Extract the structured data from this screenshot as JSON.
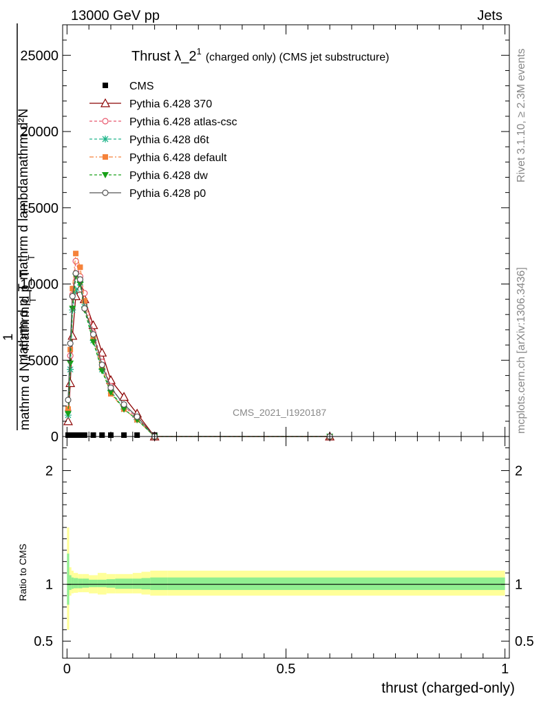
{
  "header": {
    "left": "13000 GeV pp",
    "right": "Jets"
  },
  "side": {
    "rivet": "Rivet 3.1.10, ≥ 2.3M events",
    "mcplots": "mcplots.cern.ch [arXiv:1306.3436]"
  },
  "chart_data": [
    {
      "type": "line",
      "title_main": "Thrust λ_2",
      "title_sup": "1",
      "title_rest": "(charged only) (CMS jet substructure)",
      "ylabel_num": "mathrm d²N",
      "ylabel_num2": "mathrm d p_T mathrm d lambda",
      "ylabel_sub": "T",
      "ylabel_one": "1",
      "ylabel_den": "mathrm d N / mathrm d p_T",
      "ylabel_den_sub": "T",
      "ylim": [
        0,
        27000
      ],
      "yticks": [
        0,
        5000,
        10000,
        15000,
        20000,
        25000
      ],
      "ytick_labels": [
        "0",
        "5000",
        "10000",
        "15000",
        "20000",
        "25000"
      ],
      "watermark": "CMS_2021_I1920187",
      "legend_position": "top-left",
      "x": [
        0.0025,
        0.0075,
        0.0125,
        0.02,
        0.03,
        0.04,
        0.06,
        0.08,
        0.1,
        0.13,
        0.16,
        0.2,
        0.6
      ],
      "series": [
        {
          "name": "CMS",
          "color": "#000000",
          "marker": "square",
          "line": "none",
          "values": [
            0,
            0,
            0,
            0,
            0,
            0,
            0,
            0,
            0,
            0,
            0,
            0,
            0
          ]
        },
        {
          "name": "Pythia 6.428 370",
          "color": "#8b0000",
          "marker": "triangle-open",
          "line": "solid",
          "values": [
            1000,
            3500,
            6600,
            9200,
            9700,
            9000,
            7300,
            5500,
            3700,
            2600,
            1500,
            0,
            0
          ]
        },
        {
          "name": "Pythia 6.428 atlas-csc",
          "color": "#e8556b",
          "marker": "circle-open",
          "line": "dashed",
          "values": [
            1700,
            5300,
            9300,
            11500,
            10500,
            9400,
            6800,
            4900,
            3300,
            2000,
            1200,
            0,
            0
          ]
        },
        {
          "name": "Pythia 6.428 d6t",
          "color": "#1fb58a",
          "marker": "star",
          "line": "dashed",
          "values": [
            1400,
            4400,
            8300,
            9600,
            10100,
            8500,
            6300,
            4400,
            3000,
            1800,
            1100,
            0,
            0
          ]
        },
        {
          "name": "Pythia 6.428 default",
          "color": "#f5823a",
          "marker": "square",
          "line": "dashdot",
          "values": [
            1800,
            5700,
            9700,
            12000,
            11100,
            8900,
            6500,
            4500,
            2800,
            1800,
            1100,
            0,
            0
          ]
        },
        {
          "name": "Pythia 6.428 dw",
          "color": "#18a018",
          "marker": "triangle-down",
          "line": "dashed",
          "values": [
            1500,
            4800,
            8400,
            10500,
            10000,
            8300,
            6200,
            4300,
            2900,
            1800,
            1100,
            0,
            0
          ]
        },
        {
          "name": "Pythia 6.428 p0",
          "color": "#555555",
          "marker": "circle-open",
          "line": "solid",
          "values": [
            2400,
            6100,
            9200,
            10700,
            10300,
            8400,
            6700,
            4700,
            3200,
            2100,
            1300,
            0,
            0
          ]
        }
      ]
    },
    {
      "type": "area",
      "ylabel": "Ratio to CMS",
      "xlabel": "thrust (charged-only)",
      "xlim": [
        -0.01,
        1.01
      ],
      "xticks": [
        0,
        0.5,
        1
      ],
      "xtick_labels": [
        "0",
        "0.5",
        "1"
      ],
      "ylim": [
        0.35,
        2.3
      ],
      "yticks": [
        0.5,
        1,
        2
      ],
      "ytick_labels": [
        "0.5",
        "1",
        "2"
      ],
      "bins": [
        0,
        0.005,
        0.01,
        0.015,
        0.025,
        0.035,
        0.05,
        0.07,
        0.09,
        0.11,
        0.15,
        0.17,
        0.19,
        0.23,
        1.0
      ],
      "band_green_up": [
        1.27,
        1.08,
        1.06,
        1.055,
        1.05,
        1.05,
        1.04,
        1.04,
        1.045,
        1.05,
        1.05,
        1.055,
        1.06,
        1.06
      ],
      "band_green_down": [
        0.82,
        0.95,
        0.96,
        0.965,
        0.965,
        0.97,
        0.975,
        0.975,
        0.97,
        0.96,
        0.96,
        0.955,
        0.95,
        0.95
      ],
      "band_yellow_up": [
        1.5,
        1.15,
        1.12,
        1.1,
        1.09,
        1.09,
        1.08,
        1.1,
        1.09,
        1.09,
        1.1,
        1.11,
        1.12,
        1.12
      ],
      "band_yellow_down": [
        0.6,
        0.9,
        0.92,
        0.925,
        0.93,
        0.93,
        0.92,
        0.91,
        0.92,
        0.92,
        0.92,
        0.91,
        0.9,
        0.9
      ],
      "colors": {
        "green": "#90ee90",
        "yellow": "#ffff99"
      }
    }
  ]
}
